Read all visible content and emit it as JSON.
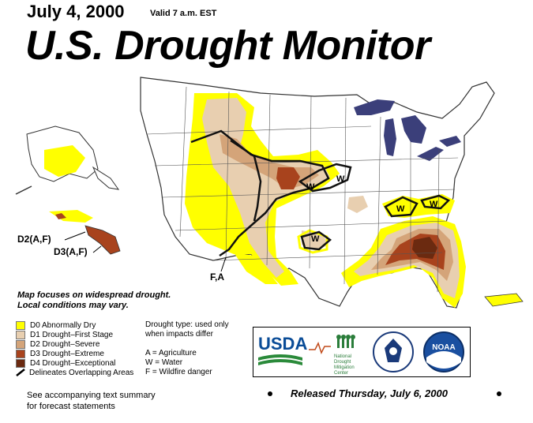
{
  "header": {
    "date": "July 4, 2000",
    "valid": "Valid 7 a.m. EST",
    "title": "U.S. Drought Monitor"
  },
  "map_labels": {
    "hawaii_d2": "D2(A,F)",
    "hawaii_d3": "D3(A,F)",
    "southwest": "F,A",
    "impact_w": "W"
  },
  "note": {
    "line1": "Map focuses on widespread drought.",
    "line2": "Local conditions may vary."
  },
  "legend": [
    {
      "label": "D0 Abnormally Dry",
      "color": "#ffff00"
    },
    {
      "label": "D1 Drought–First Stage",
      "color": "#e8cfb0"
    },
    {
      "label": "D2 Drought–Severe",
      "color": "#d4a479"
    },
    {
      "label": "D3 Drought–Extreme",
      "color": "#a8431d"
    },
    {
      "label": "D4 Drought–Exceptional",
      "color": "#6b2a10"
    }
  ],
  "legend_line": "Delineates Overlapping Areas",
  "drought_types": {
    "line1": "Drought type: used only",
    "line2": "when impacts differ",
    "a": "A = Agriculture",
    "w": "W = Water",
    "f": "F = Wildfire danger"
  },
  "footer": {
    "see1": "See accompanying text summary",
    "see2": "for forecast statements",
    "released": "Released Thursday, July 6, 2000"
  },
  "logos": {
    "usda": "USDA",
    "ndmc": [
      "National",
      "Drought",
      "Mitigation",
      "Center"
    ],
    "noaa": "NOAA"
  },
  "colors": {
    "water": "#3b3f7a",
    "state_lines": "#555555"
  }
}
